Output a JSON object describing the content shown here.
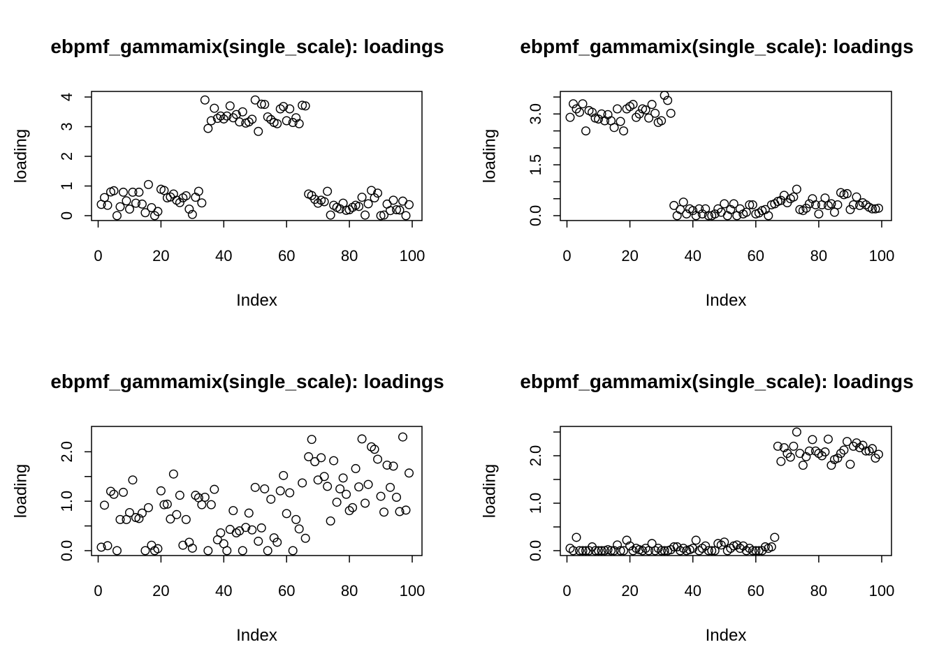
{
  "chart_data": [
    {
      "type": "scatter",
      "title": "ebpmf_gammamix(single_scale): loadings",
      "xlabel": "Index",
      "ylabel": "loading",
      "xlim": [
        1,
        100
      ],
      "ylim": [
        0,
        4
      ],
      "xticks": [
        0,
        20,
        40,
        60,
        80,
        100
      ],
      "yticks": [
        0,
        1,
        2,
        3,
        4
      ],
      "ytick_labels": [
        "0",
        "1",
        "2",
        "3",
        "4"
      ],
      "x": [
        1,
        2,
        3,
        4,
        5,
        6,
        7,
        8,
        9,
        10,
        11,
        12,
        13,
        14,
        15,
        16,
        17,
        18,
        19,
        20,
        21,
        22,
        23,
        24,
        25,
        26,
        27,
        28,
        29,
        30,
        31,
        32,
        33,
        34,
        35,
        36,
        37,
        38,
        39,
        40,
        41,
        42,
        43,
        44,
        45,
        46,
        47,
        48,
        49,
        50,
        51,
        52,
        53,
        54,
        55,
        56,
        57,
        58,
        59,
        60,
        61,
        62,
        63,
        64,
        65,
        66,
        67,
        68,
        69,
        70,
        71,
        72,
        73,
        74,
        75,
        76,
        77,
        78,
        79,
        80,
        81,
        82,
        83,
        84,
        85,
        86,
        87,
        88,
        89,
        90,
        91,
        92,
        93,
        94,
        95,
        96,
        97,
        98,
        99
      ],
      "y": [
        0.38,
        0.61,
        0.35,
        0.8,
        0.84,
        0.0,
        0.3,
        0.79,
        0.5,
        0.22,
        0.79,
        0.42,
        0.79,
        0.39,
        0.1,
        1.05,
        0.27,
        0.0,
        0.14,
        0.89,
        0.85,
        0.6,
        0.63,
        0.73,
        0.52,
        0.44,
        0.6,
        0.67,
        0.22,
        0.04,
        0.62,
        0.82,
        0.43,
        3.9,
        2.94,
        3.2,
        3.62,
        3.28,
        3.36,
        3.26,
        3.36,
        3.7,
        3.3,
        3.41,
        3.16,
        3.5,
        3.12,
        3.16,
        3.25,
        3.9,
        2.84,
        3.76,
        3.75,
        3.33,
        3.24,
        3.14,
        3.1,
        3.6,
        3.68,
        3.2,
        3.6,
        3.14,
        3.3,
        3.1,
        3.72,
        3.7,
        0.73,
        0.68,
        0.55,
        0.42,
        0.52,
        0.47,
        0.82,
        0.02,
        0.35,
        0.28,
        0.23,
        0.42,
        0.18,
        0.2,
        0.28,
        0.35,
        0.31,
        0.62,
        0.02,
        0.4,
        0.85,
        0.6,
        0.76,
        0.0,
        0.02,
        0.39,
        0.17,
        0.52,
        0.2,
        0.19,
        0.49,
        0.0,
        0.37
      ]
    },
    {
      "type": "scatter",
      "title": "ebpmf_gammamix(single_scale): loadings",
      "xlabel": "Index",
      "ylabel": "loading",
      "xlim": [
        1,
        100
      ],
      "ylim": [
        0,
        3.5
      ],
      "xticks": [
        0,
        20,
        40,
        60,
        80,
        100
      ],
      "yticks": [
        0,
        0.5,
        1,
        1.5,
        2,
        2.5,
        3,
        3.5
      ],
      "ytick_labels": [
        "0.0",
        "",
        "",
        "1.5",
        "",
        "",
        "3.0",
        ""
      ],
      "x": [
        1,
        2,
        3,
        4,
        5,
        6,
        7,
        8,
        9,
        10,
        11,
        12,
        13,
        14,
        15,
        16,
        17,
        18,
        19,
        20,
        21,
        22,
        23,
        24,
        25,
        26,
        27,
        28,
        29,
        30,
        31,
        32,
        33,
        34,
        35,
        36,
        37,
        38,
        39,
        40,
        41,
        42,
        43,
        44,
        45,
        46,
        47,
        48,
        49,
        50,
        51,
        52,
        53,
        54,
        55,
        56,
        57,
        58,
        59,
        60,
        61,
        62,
        63,
        64,
        65,
        66,
        67,
        68,
        69,
        70,
        71,
        72,
        73,
        74,
        75,
        76,
        77,
        78,
        79,
        80,
        81,
        82,
        83,
        84,
        85,
        86,
        87,
        88,
        89,
        90,
        91,
        92,
        93,
        94,
        95,
        96,
        97,
        98,
        99
      ],
      "y": [
        2.9,
        3.3,
        3.15,
        3.05,
        3.3,
        2.5,
        3.1,
        3.05,
        2.88,
        2.85,
        3.0,
        2.8,
        2.98,
        2.8,
        2.6,
        3.15,
        2.78,
        2.5,
        3.15,
        3.22,
        3.28,
        2.9,
        3.0,
        3.15,
        3.12,
        2.88,
        3.28,
        3.02,
        2.75,
        2.8,
        3.55,
        3.4,
        3.02,
        0.3,
        0.0,
        0.18,
        0.4,
        0.05,
        0.2,
        0.15,
        0.0,
        0.2,
        0.05,
        0.2,
        0.0,
        0.0,
        0.05,
        0.2,
        0.1,
        0.35,
        0.0,
        0.18,
        0.35,
        0.0,
        0.2,
        0.05,
        0.1,
        0.32,
        0.32,
        0.05,
        0.08,
        0.15,
        0.18,
        0.0,
        0.32,
        0.35,
        0.42,
        0.45,
        0.6,
        0.38,
        0.5,
        0.55,
        0.78,
        0.18,
        0.15,
        0.22,
        0.35,
        0.5,
        0.32,
        0.05,
        0.32,
        0.52,
        0.3,
        0.35,
        0.1,
        0.32,
        0.68,
        0.62,
        0.65,
        0.18,
        0.32,
        0.55,
        0.3,
        0.38,
        0.32,
        0.25,
        0.2,
        0.2,
        0.22
      ]
    },
    {
      "type": "scatter",
      "title": "ebpmf_gammamix(single_scale): loadings",
      "xlabel": "Index",
      "ylabel": "loading",
      "xlim": [
        1,
        100
      ],
      "ylim": [
        0,
        2.4
      ],
      "xticks": [
        0,
        20,
        40,
        60,
        80,
        100
      ],
      "yticks": [
        0,
        0.5,
        1,
        1.5,
        2
      ],
      "ytick_labels": [
        "0.0",
        "",
        "1.0",
        "",
        "2.0"
      ],
      "x": [
        1,
        2,
        3,
        4,
        5,
        6,
        7,
        8,
        9,
        10,
        11,
        12,
        13,
        14,
        15,
        16,
        17,
        18,
        19,
        20,
        21,
        22,
        23,
        24,
        25,
        26,
        27,
        28,
        29,
        30,
        31,
        32,
        33,
        34,
        35,
        36,
        37,
        38,
        39,
        40,
        41,
        42,
        43,
        44,
        45,
        46,
        47,
        48,
        49,
        50,
        51,
        52,
        53,
        54,
        55,
        56,
        57,
        58,
        59,
        60,
        61,
        62,
        63,
        64,
        65,
        66,
        67,
        68,
        69,
        70,
        71,
        72,
        73,
        74,
        75,
        76,
        77,
        78,
        79,
        80,
        81,
        82,
        83,
        84,
        85,
        86,
        87,
        88,
        89,
        90,
        91,
        92,
        93,
        94,
        95,
        96,
        97,
        98,
        99
      ],
      "y": [
        0.07,
        0.92,
        0.1,
        1.2,
        1.14,
        0.0,
        0.63,
        1.18,
        0.63,
        0.77,
        1.43,
        0.67,
        0.65,
        0.76,
        0.0,
        0.87,
        0.11,
        0.0,
        0.04,
        1.21,
        0.93,
        0.94,
        0.64,
        1.55,
        0.73,
        1.12,
        0.11,
        0.63,
        0.17,
        0.05,
        1.12,
        1.07,
        0.93,
        1.08,
        0.0,
        0.93,
        1.24,
        0.22,
        0.36,
        0.14,
        0.0,
        0.43,
        0.81,
        0.36,
        0.4,
        0.0,
        0.47,
        0.76,
        0.42,
        1.28,
        0.19,
        0.46,
        1.25,
        0.0,
        1.04,
        0.26,
        0.17,
        1.21,
        1.52,
        0.75,
        1.17,
        0.0,
        0.63,
        0.44,
        1.37,
        0.25,
        1.9,
        2.25,
        1.8,
        1.43,
        1.88,
        1.5,
        1.3,
        0.6,
        1.82,
        0.98,
        1.25,
        1.47,
        1.14,
        0.81,
        0.87,
        1.66,
        1.29,
        2.26,
        0.96,
        1.34,
        2.1,
        2.05,
        1.85,
        1.1,
        0.78,
        1.73,
        1.28,
        1.71,
        1.08,
        0.79,
        2.3,
        0.82,
        1.57
      ]
    },
    {
      "type": "scatter",
      "title": "ebpmf_gammamix(single_scale): loadings",
      "xlabel": "Index",
      "ylabel": "loading",
      "xlim": [
        1,
        100
      ],
      "ylim": [
        0,
        2.5
      ],
      "xticks": [
        0,
        20,
        40,
        60,
        80,
        100
      ],
      "yticks": [
        0,
        0.5,
        1,
        1.5,
        2,
        2.5
      ],
      "ytick_labels": [
        "0.0",
        "",
        "1.0",
        "",
        "2.0",
        ""
      ],
      "x": [
        1,
        2,
        3,
        4,
        5,
        6,
        7,
        8,
        9,
        10,
        11,
        12,
        13,
        14,
        15,
        16,
        17,
        18,
        19,
        20,
        21,
        22,
        23,
        24,
        25,
        26,
        27,
        28,
        29,
        30,
        31,
        32,
        33,
        34,
        35,
        36,
        37,
        38,
        39,
        40,
        41,
        42,
        43,
        44,
        45,
        46,
        47,
        48,
        49,
        50,
        51,
        52,
        53,
        54,
        55,
        56,
        57,
        58,
        59,
        60,
        61,
        62,
        63,
        64,
        65,
        66,
        67,
        68,
        69,
        70,
        71,
        72,
        73,
        74,
        75,
        76,
        77,
        78,
        79,
        80,
        81,
        82,
        83,
        84,
        85,
        86,
        87,
        88,
        89,
        90,
        91,
        92,
        93,
        94,
        95,
        96,
        97,
        98,
        99
      ],
      "y": [
        0.05,
        0.0,
        0.28,
        0.0,
        0.0,
        0.0,
        0.0,
        0.08,
        0.0,
        0.0,
        0.0,
        0.0,
        0.02,
        0.0,
        0.0,
        0.12,
        0.0,
        0.0,
        0.22,
        0.1,
        0.0,
        0.05,
        0.02,
        0.0,
        0.05,
        0.0,
        0.15,
        0.0,
        0.05,
        0.0,
        0.0,
        0.0,
        0.02,
        0.08,
        0.08,
        0.0,
        0.05,
        0.0,
        0.02,
        0.05,
        0.22,
        0.0,
        0.05,
        0.1,
        0.0,
        0.0,
        0.0,
        0.15,
        0.12,
        0.18,
        0.0,
        0.05,
        0.1,
        0.12,
        0.05,
        0.1,
        0.0,
        0.05,
        0.0,
        0.0,
        0.0,
        0.0,
        0.08,
        0.05,
        0.08,
        0.28,
        2.2,
        1.88,
        2.17,
        2.05,
        1.97,
        2.2,
        2.5,
        2.05,
        1.8,
        1.98,
        2.1,
        2.34,
        2.1,
        2.05,
        2.0,
        2.08,
        2.35,
        1.8,
        1.92,
        1.95,
        2.05,
        2.12,
        2.3,
        1.82,
        2.2,
        2.27,
        2.17,
        2.22,
        2.1,
        2.1,
        2.15,
        1.95,
        2.03
      ]
    }
  ]
}
